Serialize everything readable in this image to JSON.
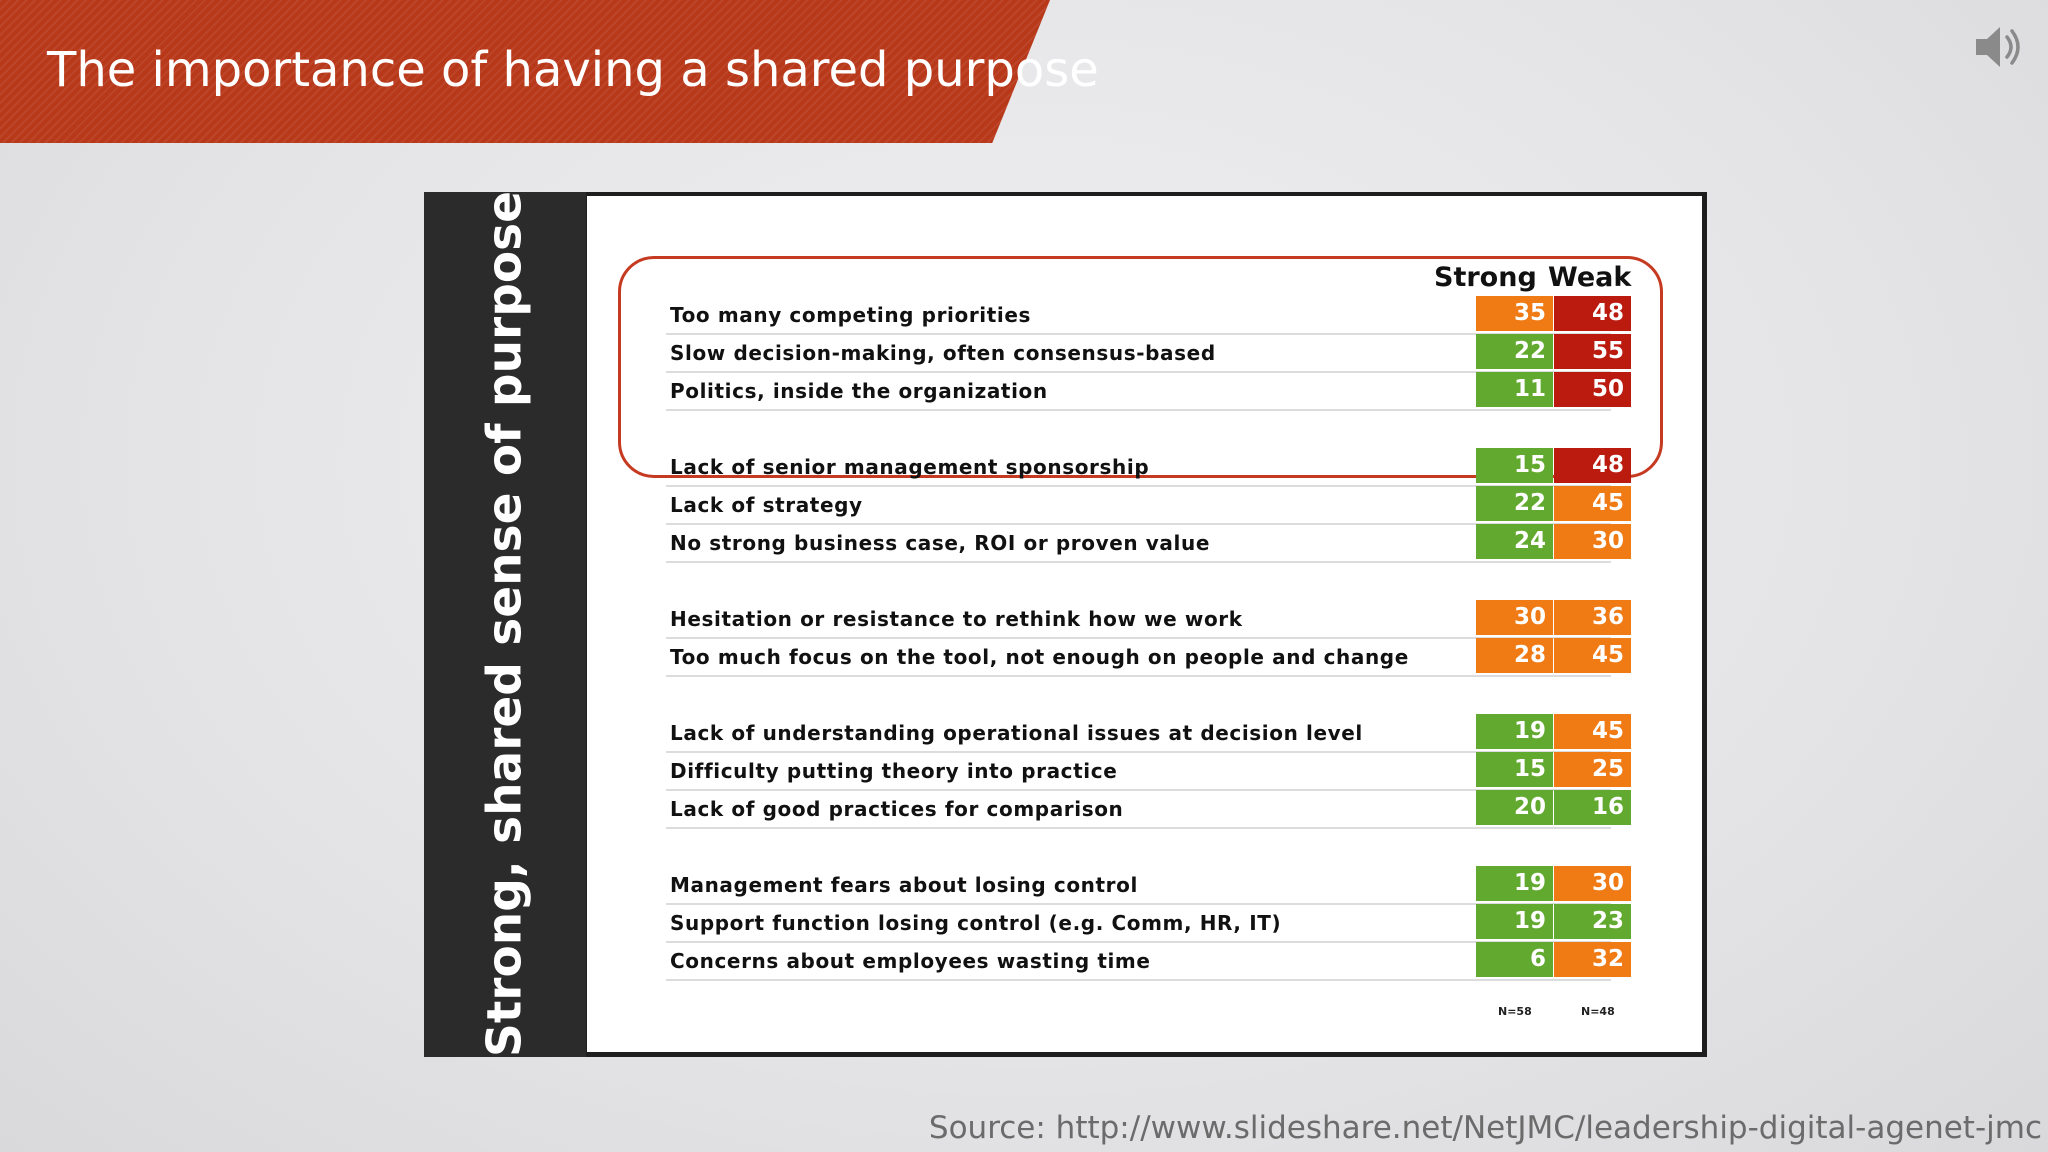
{
  "slide": {
    "title": "The importance of having a shared purpose",
    "source": "Source: http://www.slideshare.net/NetJMC/leadership-digital-agenet-jmc",
    "audio_icon": "speaker-icon",
    "colors": {
      "banner": "#b8381a",
      "green": "#62a930",
      "orange": "#f07a14",
      "red": "#bb1a0e",
      "highlight": "#c53a20"
    }
  },
  "panel": {
    "side_title": "Strong, shared sense of purpose",
    "col_strong": "Strong",
    "col_weak": "Weak",
    "n_strong": "N=58",
    "n_weak": "N=48"
  },
  "chart_data": {
    "type": "table",
    "columns": [
      "Strong",
      "Weak"
    ],
    "rows": [
      {
        "label": "Too many competing priorities",
        "strong": 35,
        "weak": 48,
        "strong_color": "orange",
        "weak_color": "red"
      },
      {
        "label": "Slow decision-making, often consensus-based",
        "strong": 22,
        "weak": 55,
        "strong_color": "green",
        "weak_color": "red"
      },
      {
        "label": "Politics, inside the organization",
        "strong": 11,
        "weak": 50,
        "strong_color": "green",
        "weak_color": "red"
      },
      {
        "label": "Lack of senior management sponsorship",
        "strong": 15,
        "weak": 48,
        "strong_color": "green",
        "weak_color": "red"
      },
      {
        "label": "Lack of strategy",
        "strong": 22,
        "weak": 45,
        "strong_color": "green",
        "weak_color": "orange"
      },
      {
        "label": "No strong business case, ROI or proven value",
        "strong": 24,
        "weak": 30,
        "strong_color": "green",
        "weak_color": "orange"
      },
      {
        "label": "Hesitation or resistance to rethink how we work",
        "strong": 30,
        "weak": 36,
        "strong_color": "orange",
        "weak_color": "orange"
      },
      {
        "label": "Too much focus on the tool, not enough on people and change",
        "strong": 28,
        "weak": 45,
        "strong_color": "orange",
        "weak_color": "orange"
      },
      {
        "label": "Lack of understanding operational issues at decision level",
        "strong": 19,
        "weak": 45,
        "strong_color": "green",
        "weak_color": "orange"
      },
      {
        "label": "Difficulty putting theory into practice",
        "strong": 15,
        "weak": 25,
        "strong_color": "green",
        "weak_color": "orange"
      },
      {
        "label": "Lack of good practices for comparison",
        "strong": 20,
        "weak": 16,
        "strong_color": "green",
        "weak_color": "green"
      },
      {
        "label": "Management fears about losing control",
        "strong": 19,
        "weak": 30,
        "strong_color": "green",
        "weak_color": "orange"
      },
      {
        "label": "Support function losing control (e.g. Comm, HR, IT)",
        "strong": 19,
        "weak": 23,
        "strong_color": "green",
        "weak_color": "green"
      },
      {
        "label": "Concerns about employees wasting time",
        "strong": 6,
        "weak": 32,
        "strong_color": "green",
        "weak_color": "orange"
      }
    ]
  }
}
